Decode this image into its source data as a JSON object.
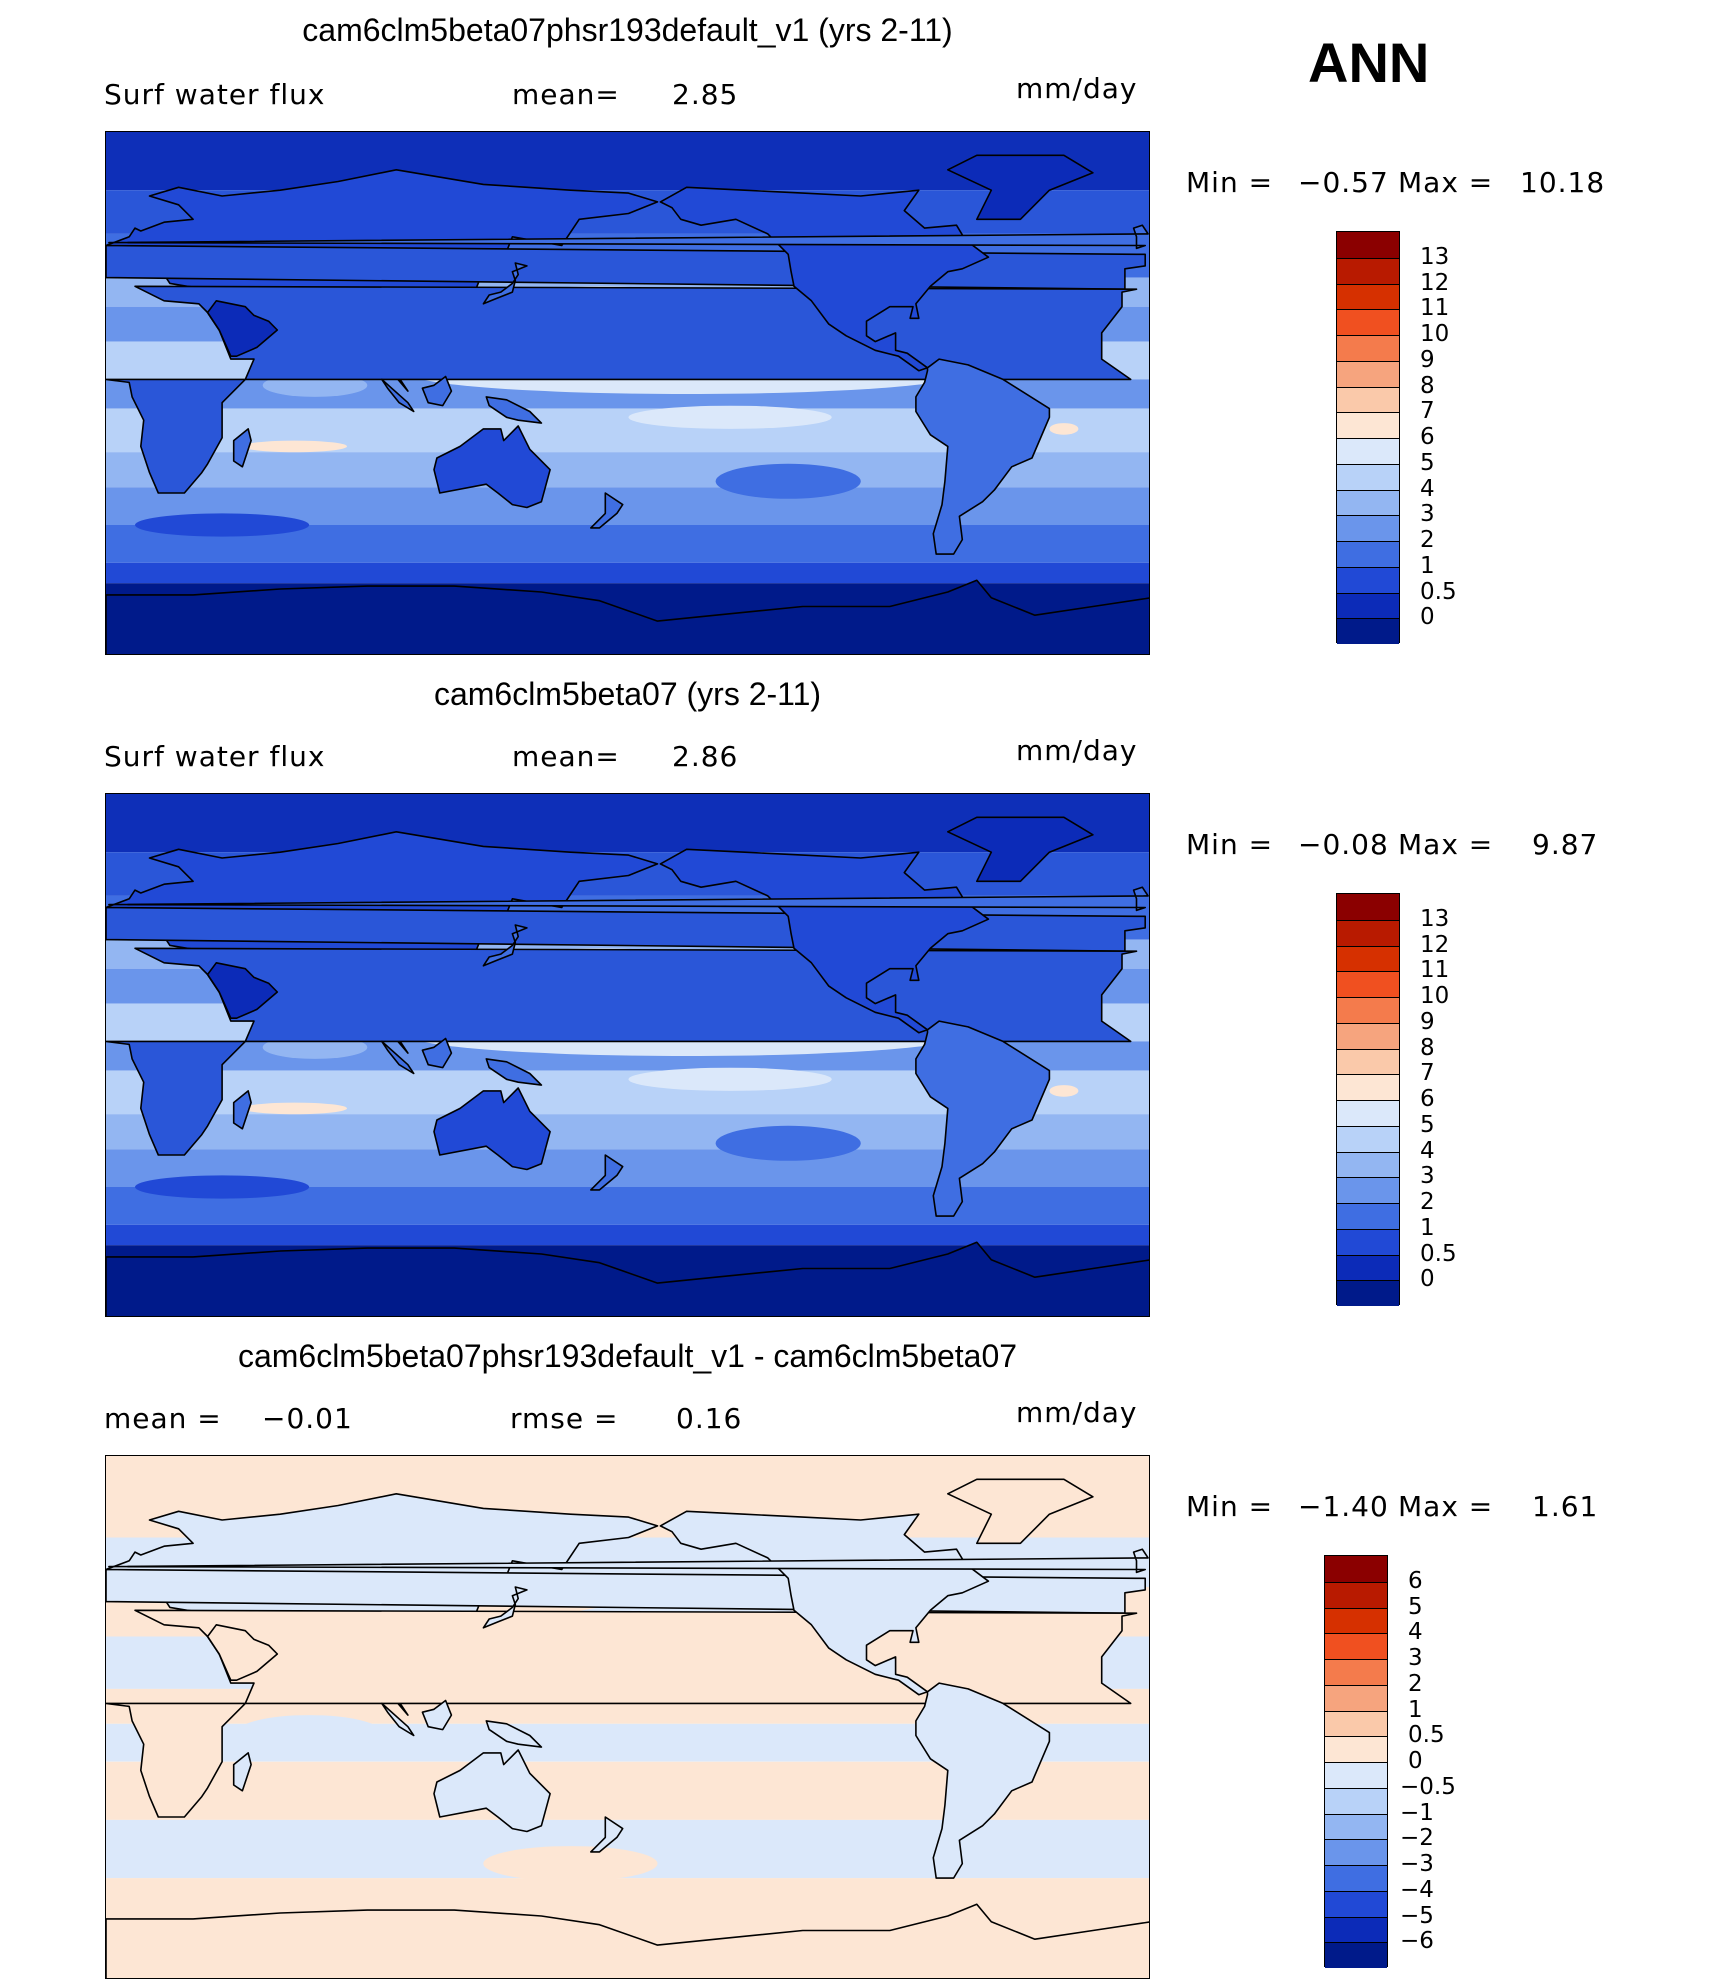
{
  "season": "ANN",
  "panels": [
    {
      "title": "cam6clm5beta07phsr193default_v1 (yrs 2-11)",
      "left_label": "Surf water flux",
      "center_key": "mean=",
      "center_val": "2.85",
      "units": "mm/day",
      "min_label": "Min =",
      "min_val": "−0.57",
      "max_label": "Max =",
      "max_val": "10.18",
      "levels": [
        "13",
        "12",
        "11",
        "10",
        "9",
        "8",
        "7",
        "6",
        "5",
        "4",
        "3",
        "2",
        "1",
        "0.5",
        "0"
      ],
      "colors": [
        "#8b0000",
        "#b81a00",
        "#d63000",
        "#f05020",
        "#f47b4c",
        "#f6a47e",
        "#fac9aa",
        "#fde6d4",
        "#dbe8fa",
        "#b8d2f8",
        "#93b6f2",
        "#6a95eb",
        "#3f6ee2",
        "#2149d6",
        "#0c2bb8",
        "#001a8a"
      ],
      "map_style": "precip"
    },
    {
      "title": "cam6clm5beta07 (yrs 2-11)",
      "left_label": "Surf water flux",
      "center_key": "mean=",
      "center_val": "2.86",
      "units": "mm/day",
      "min_label": "Min =",
      "min_val": "−0.08",
      "max_label": "Max =",
      "max_val": "9.87",
      "levels": [
        "13",
        "12",
        "11",
        "10",
        "9",
        "8",
        "7",
        "6",
        "5",
        "4",
        "3",
        "2",
        "1",
        "0.5",
        "0"
      ],
      "colors": [
        "#8b0000",
        "#b81a00",
        "#d63000",
        "#f05020",
        "#f47b4c",
        "#f6a47e",
        "#fac9aa",
        "#fde6d4",
        "#dbe8fa",
        "#b8d2f8",
        "#93b6f2",
        "#6a95eb",
        "#3f6ee2",
        "#2149d6",
        "#0c2bb8",
        "#001a8a"
      ],
      "map_style": "precip"
    },
    {
      "title": "cam6clm5beta07phsr193default_v1 - cam6clm5beta07",
      "left_label": "mean =",
      "left_val": "−0.01",
      "center_key": "rmse =",
      "center_val": "0.16",
      "units": "mm/day",
      "min_label": "Min =",
      "min_val": "−1.40",
      "max_label": "Max =",
      "max_val": "1.61",
      "levels": [
        "6",
        "5",
        "4",
        "3",
        "2",
        "1",
        "0.5",
        "0",
        "−0.5",
        "−1",
        "−2",
        "−3",
        "−4",
        "−5",
        "−6"
      ],
      "colors": [
        "#8b0000",
        "#b81a00",
        "#d63000",
        "#f05020",
        "#f47b4c",
        "#f6a47e",
        "#fac9aa",
        "#fde6d4",
        "#dbe8fa",
        "#b8d2f8",
        "#93b6f2",
        "#6a95eb",
        "#3f6ee2",
        "#2149d6",
        "#0c2bb8",
        "#001a8a"
      ],
      "map_style": "diff"
    }
  ]
}
